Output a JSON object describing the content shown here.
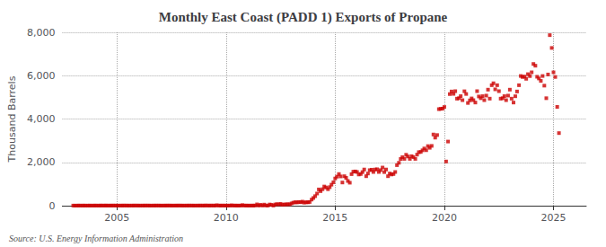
{
  "chart_data": {
    "type": "scatter",
    "title": "Monthly East Coast (PADD 1) Exports of Propane",
    "ylabel": "Thousand Barrels",
    "annotation": "Source: U.S. Energy Information Administration",
    "color": "#cc0000",
    "marker": "square",
    "grid": true,
    "xlim": [
      2002.5,
      2026.5
    ],
    "xticks": [
      2005,
      2010,
      2015,
      2020,
      2025
    ],
    "ylim": [
      0,
      8000
    ],
    "yticks": [
      0,
      {
        "value": 2000,
        "label": "2,000"
      },
      {
        "value": 4000,
        "label": "4,000"
      },
      {
        "value": 6000,
        "label": "6,000"
      },
      {
        "value": 8000,
        "label": "8,000"
      }
    ],
    "x": [
      2003.0,
      2003.08,
      2003.17,
      2003.25,
      2003.33,
      2003.42,
      2003.5,
      2003.58,
      2003.67,
      2003.75,
      2003.83,
      2003.92,
      2004.0,
      2004.08,
      2004.17,
      2004.25,
      2004.33,
      2004.42,
      2004.5,
      2004.58,
      2004.67,
      2004.75,
      2004.83,
      2004.92,
      2005.0,
      2005.08,
      2005.17,
      2005.25,
      2005.33,
      2005.42,
      2005.5,
      2005.58,
      2005.67,
      2005.75,
      2005.83,
      2005.92,
      2006.0,
      2006.08,
      2006.17,
      2006.25,
      2006.33,
      2006.42,
      2006.5,
      2006.58,
      2006.67,
      2006.75,
      2006.83,
      2006.92,
      2007.0,
      2007.08,
      2007.17,
      2007.25,
      2007.33,
      2007.42,
      2007.5,
      2007.58,
      2007.67,
      2007.75,
      2007.83,
      2007.92,
      2008.0,
      2008.08,
      2008.17,
      2008.25,
      2008.33,
      2008.42,
      2008.5,
      2008.58,
      2008.67,
      2008.75,
      2008.83,
      2008.92,
      2009.0,
      2009.08,
      2009.17,
      2009.25,
      2009.33,
      2009.42,
      2009.5,
      2009.58,
      2009.67,
      2009.75,
      2009.83,
      2009.92,
      2010.0,
      2010.08,
      2010.17,
      2010.25,
      2010.33,
      2010.42,
      2010.5,
      2010.58,
      2010.67,
      2010.75,
      2010.83,
      2010.92,
      2011.0,
      2011.08,
      2011.17,
      2011.25,
      2011.33,
      2011.42,
      2011.5,
      2011.58,
      2011.67,
      2011.75,
      2011.83,
      2011.92,
      2012.0,
      2012.08,
      2012.17,
      2012.25,
      2012.33,
      2012.42,
      2012.5,
      2012.58,
      2012.67,
      2012.75,
      2012.83,
      2012.92,
      2013.0,
      2013.08,
      2013.17,
      2013.25,
      2013.33,
      2013.42,
      2013.5,
      2013.58,
      2013.67,
      2013.75,
      2013.83,
      2013.92,
      2014.0,
      2014.08,
      2014.17,
      2014.25,
      2014.33,
      2014.42,
      2014.5,
      2014.58,
      2014.67,
      2014.75,
      2014.83,
      2014.92,
      2015.0,
      2015.08,
      2015.17,
      2015.25,
      2015.33,
      2015.42,
      2015.5,
      2015.58,
      2015.67,
      2015.75,
      2015.83,
      2015.92,
      2016.0,
      2016.08,
      2016.17,
      2016.25,
      2016.33,
      2016.42,
      2016.5,
      2016.58,
      2016.67,
      2016.75,
      2016.83,
      2016.92,
      2017.0,
      2017.08,
      2017.17,
      2017.25,
      2017.33,
      2017.42,
      2017.5,
      2017.58,
      2017.67,
      2017.75,
      2017.83,
      2017.92,
      2018.0,
      2018.08,
      2018.17,
      2018.25,
      2018.33,
      2018.42,
      2018.5,
      2018.58,
      2018.67,
      2018.75,
      2018.83,
      2018.92,
      2019.0,
      2019.08,
      2019.17,
      2019.25,
      2019.33,
      2019.42,
      2019.5,
      2019.58,
      2019.67,
      2019.75,
      2019.83,
      2019.92,
      2020.0,
      2020.08,
      2020.17,
      2020.25,
      2020.33,
      2020.42,
      2020.5,
      2020.58,
      2020.67,
      2020.75,
      2020.83,
      2020.92,
      2021.0,
      2021.08,
      2021.17,
      2021.25,
      2021.33,
      2021.42,
      2021.5,
      2021.58,
      2021.67,
      2021.75,
      2021.83,
      2021.92,
      2022.0,
      2022.08,
      2022.17,
      2022.25,
      2022.33,
      2022.42,
      2022.5,
      2022.58,
      2022.67,
      2022.75,
      2022.83,
      2022.92,
      2023.0,
      2023.08,
      2023.17,
      2023.25,
      2023.33,
      2023.42,
      2023.5,
      2023.58,
      2023.67,
      2023.75,
      2023.83,
      2023.92,
      2024.0,
      2024.08,
      2024.17,
      2024.25,
      2024.33,
      2024.42,
      2024.5,
      2024.58,
      2024.67,
      2024.75,
      2024.83,
      2024.92,
      2025.0,
      2025.08,
      2025.17,
      2025.25
    ],
    "values": [
      5,
      3,
      4,
      6,
      5,
      4,
      7,
      3,
      5,
      6,
      4,
      5,
      6,
      5,
      4,
      7,
      6,
      5,
      8,
      4,
      6,
      5,
      7,
      6,
      5,
      4,
      6,
      5,
      7,
      6,
      5,
      4,
      6,
      5,
      7,
      6,
      5,
      4,
      6,
      5,
      7,
      6,
      5,
      4,
      6,
      5,
      7,
      6,
      5,
      4,
      6,
      5,
      7,
      6,
      5,
      4,
      6,
      5,
      7,
      6,
      5,
      4,
      6,
      5,
      7,
      6,
      5,
      4,
      6,
      5,
      7,
      6,
      5,
      10,
      6,
      5,
      7,
      6,
      5,
      20,
      6,
      5,
      7,
      6,
      5,
      4,
      6,
      15,
      7,
      6,
      5,
      4,
      6,
      25,
      7,
      6,
      5,
      4,
      6,
      5,
      7,
      60,
      5,
      40,
      6,
      50,
      7,
      6,
      55,
      40,
      6,
      55,
      70,
      60,
      85,
      40,
      60,
      55,
      70,
      60,
      105,
      140,
      160,
      150,
      170,
      160,
      185,
      140,
      160,
      155,
      170,
      280,
      355,
      440,
      560,
      750,
      670,
      760,
      885,
      840,
      760,
      855,
      970,
      1080,
      1255,
      1340,
      1460,
      1350,
      1070,
      1360,
      1285,
      1140,
      1060,
      1455,
      1570,
      1580,
      1555,
      1440,
      1460,
      1550,
      1670,
      1360,
      1485,
      1640,
      1660,
      1555,
      1670,
      1680,
      1555,
      1640,
      1760,
      1550,
      1670,
      1360,
      1485,
      1440,
      1460,
      1555,
      1870,
      1980,
      2155,
      2240,
      2160,
      2350,
      2270,
      2160,
      2285,
      2240,
      2160,
      2355,
      2470,
      2480,
      2555,
      2640,
      2560,
      2750,
      2670,
      2760,
      3285,
      3140,
      3260,
      4455,
      4470,
      4480,
      4555,
      2040,
      2960,
      5150,
      5270,
      5160,
      5285,
      4940,
      4960,
      5055,
      4870,
      5280,
      5155,
      4740,
      4860,
      4950,
      4870,
      4760,
      5285,
      5040,
      4960,
      5055,
      4870,
      5080,
      5355,
      4940,
      5560,
      5650,
      5370,
      5560,
      5285,
      4940,
      4960,
      5055,
      4870,
      5080,
      5355,
      4940,
      4760,
      5050,
      5270,
      5560,
      5985,
      5940,
      5960,
      5855,
      6070,
      5980,
      6155,
      6540,
      6460,
      5950,
      5870,
      5760,
      5985,
      5540,
      4960,
      6055,
      7870,
      7280,
      6155,
      5940,
      4560,
      3350
    ]
  }
}
